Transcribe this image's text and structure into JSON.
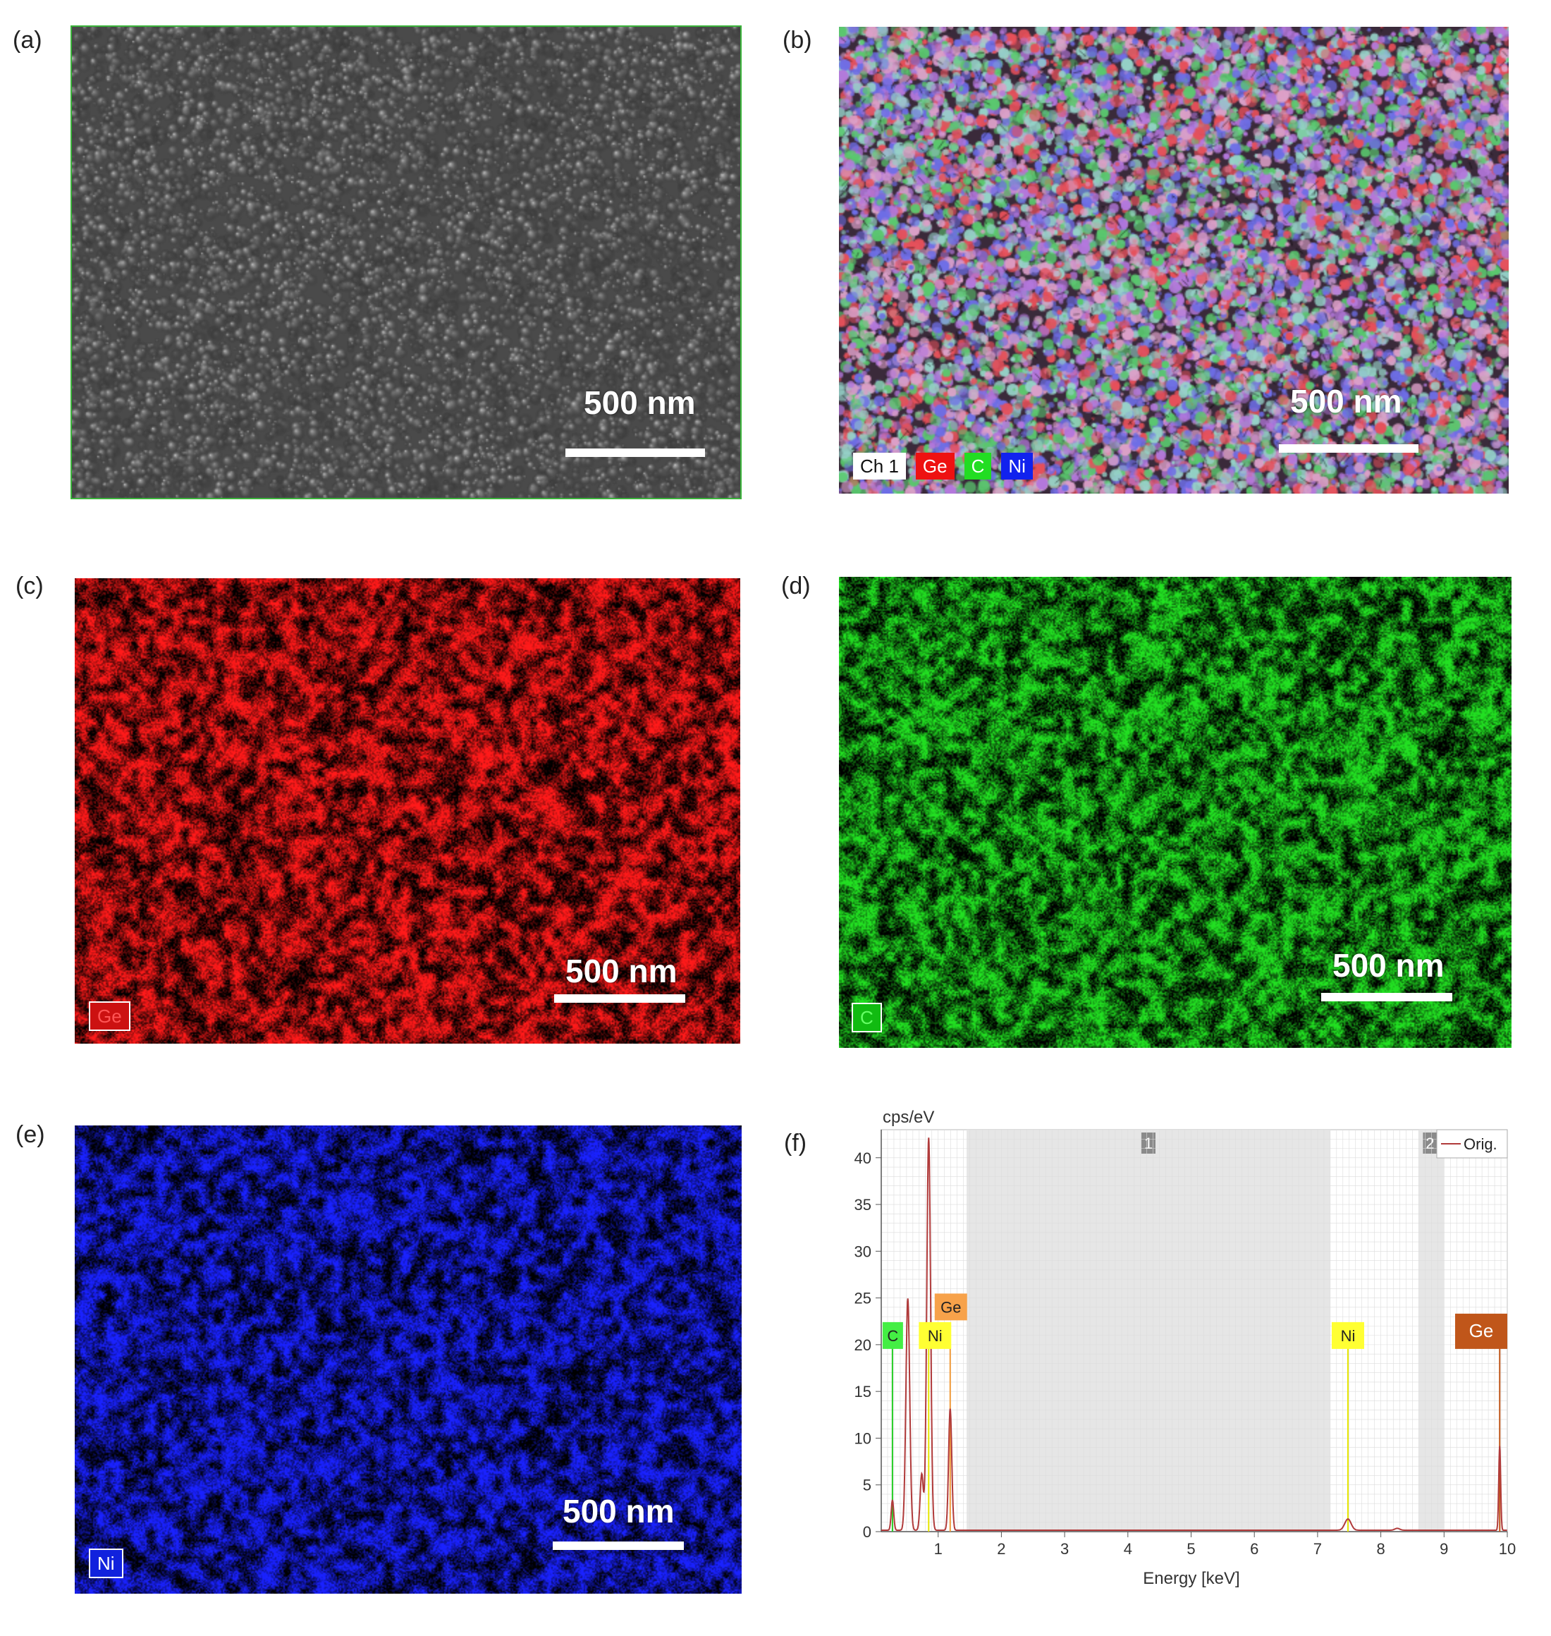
{
  "panels": {
    "a": {
      "label": "(a)",
      "scale": "500 nm"
    },
    "b": {
      "label": "(b)",
      "scale": "500 nm",
      "legend": [
        "Ch 1",
        "Ge",
        "C",
        "Ni"
      ]
    },
    "c": {
      "label": "(c)",
      "scale": "500 nm",
      "tag": "Ge",
      "color": "#ff1a1a"
    },
    "d": {
      "label": "(d)",
      "scale": "500 nm",
      "tag": "C",
      "color": "#22e022"
    },
    "e": {
      "label": "(e)",
      "scale": "500 nm",
      "tag": "Ni",
      "color": "#1a22ff"
    },
    "f": {
      "label": "(f)"
    }
  },
  "chart_data": {
    "type": "line",
    "ylabel": "cps/eV",
    "xlabel": "Energy [keV]",
    "xlim": [
      0.1,
      10
    ],
    "ylim": [
      0,
      43
    ],
    "x_ticks": [
      1,
      2,
      3,
      4,
      5,
      6,
      7,
      8,
      9,
      10
    ],
    "y_ticks": [
      0,
      5,
      10,
      15,
      20,
      25,
      30,
      35,
      40
    ],
    "legend": [
      "Orig."
    ],
    "regions": [
      {
        "label": "1",
        "from": 1.45,
        "to": 7.2
      },
      {
        "label": "2",
        "from": 8.6,
        "to": 9.0
      }
    ],
    "series": [
      {
        "name": "Orig.",
        "color": "#b03a3a",
        "peaks": [
          {
            "x": 0.277,
            "y": 3.2,
            "w": 0.02
          },
          {
            "x": 0.52,
            "y": 24.8,
            "w": 0.03
          },
          {
            "x": 0.74,
            "y": 6.0,
            "w": 0.025
          },
          {
            "x": 0.85,
            "y": 42.0,
            "w": 0.03
          },
          {
            "x": 1.19,
            "y": 13.0,
            "w": 0.025
          },
          {
            "x": 7.48,
            "y": 1.2,
            "w": 0.05
          },
          {
            "x": 8.26,
            "y": 0.2,
            "w": 0.04
          },
          {
            "x": 9.88,
            "y": 9.0,
            "w": 0.015
          }
        ]
      }
    ],
    "element_lines": [
      {
        "element": "C",
        "x": 0.277,
        "height": 20,
        "color": "#22cc22",
        "tagColor": "#44ee44",
        "tagText": "#222"
      },
      {
        "element": "Ni",
        "x": 0.85,
        "height": 20,
        "color": "#e6e600",
        "tagColor": "#ffff33",
        "tagText": "#222"
      },
      {
        "element": "Ge",
        "x": 1.19,
        "height": 22,
        "color": "#f39c3a",
        "tagColor": "#f7a24a",
        "tagText": "#222"
      },
      {
        "element": "Ni",
        "x": 7.48,
        "height": 20,
        "color": "#e6e600",
        "tagColor": "#ffff33",
        "tagText": "#222"
      },
      {
        "element": "Ge",
        "x": 9.88,
        "height": 20,
        "color": "#c0561a",
        "tagColor": "#c0561a",
        "tagText": "#fff"
      }
    ]
  }
}
